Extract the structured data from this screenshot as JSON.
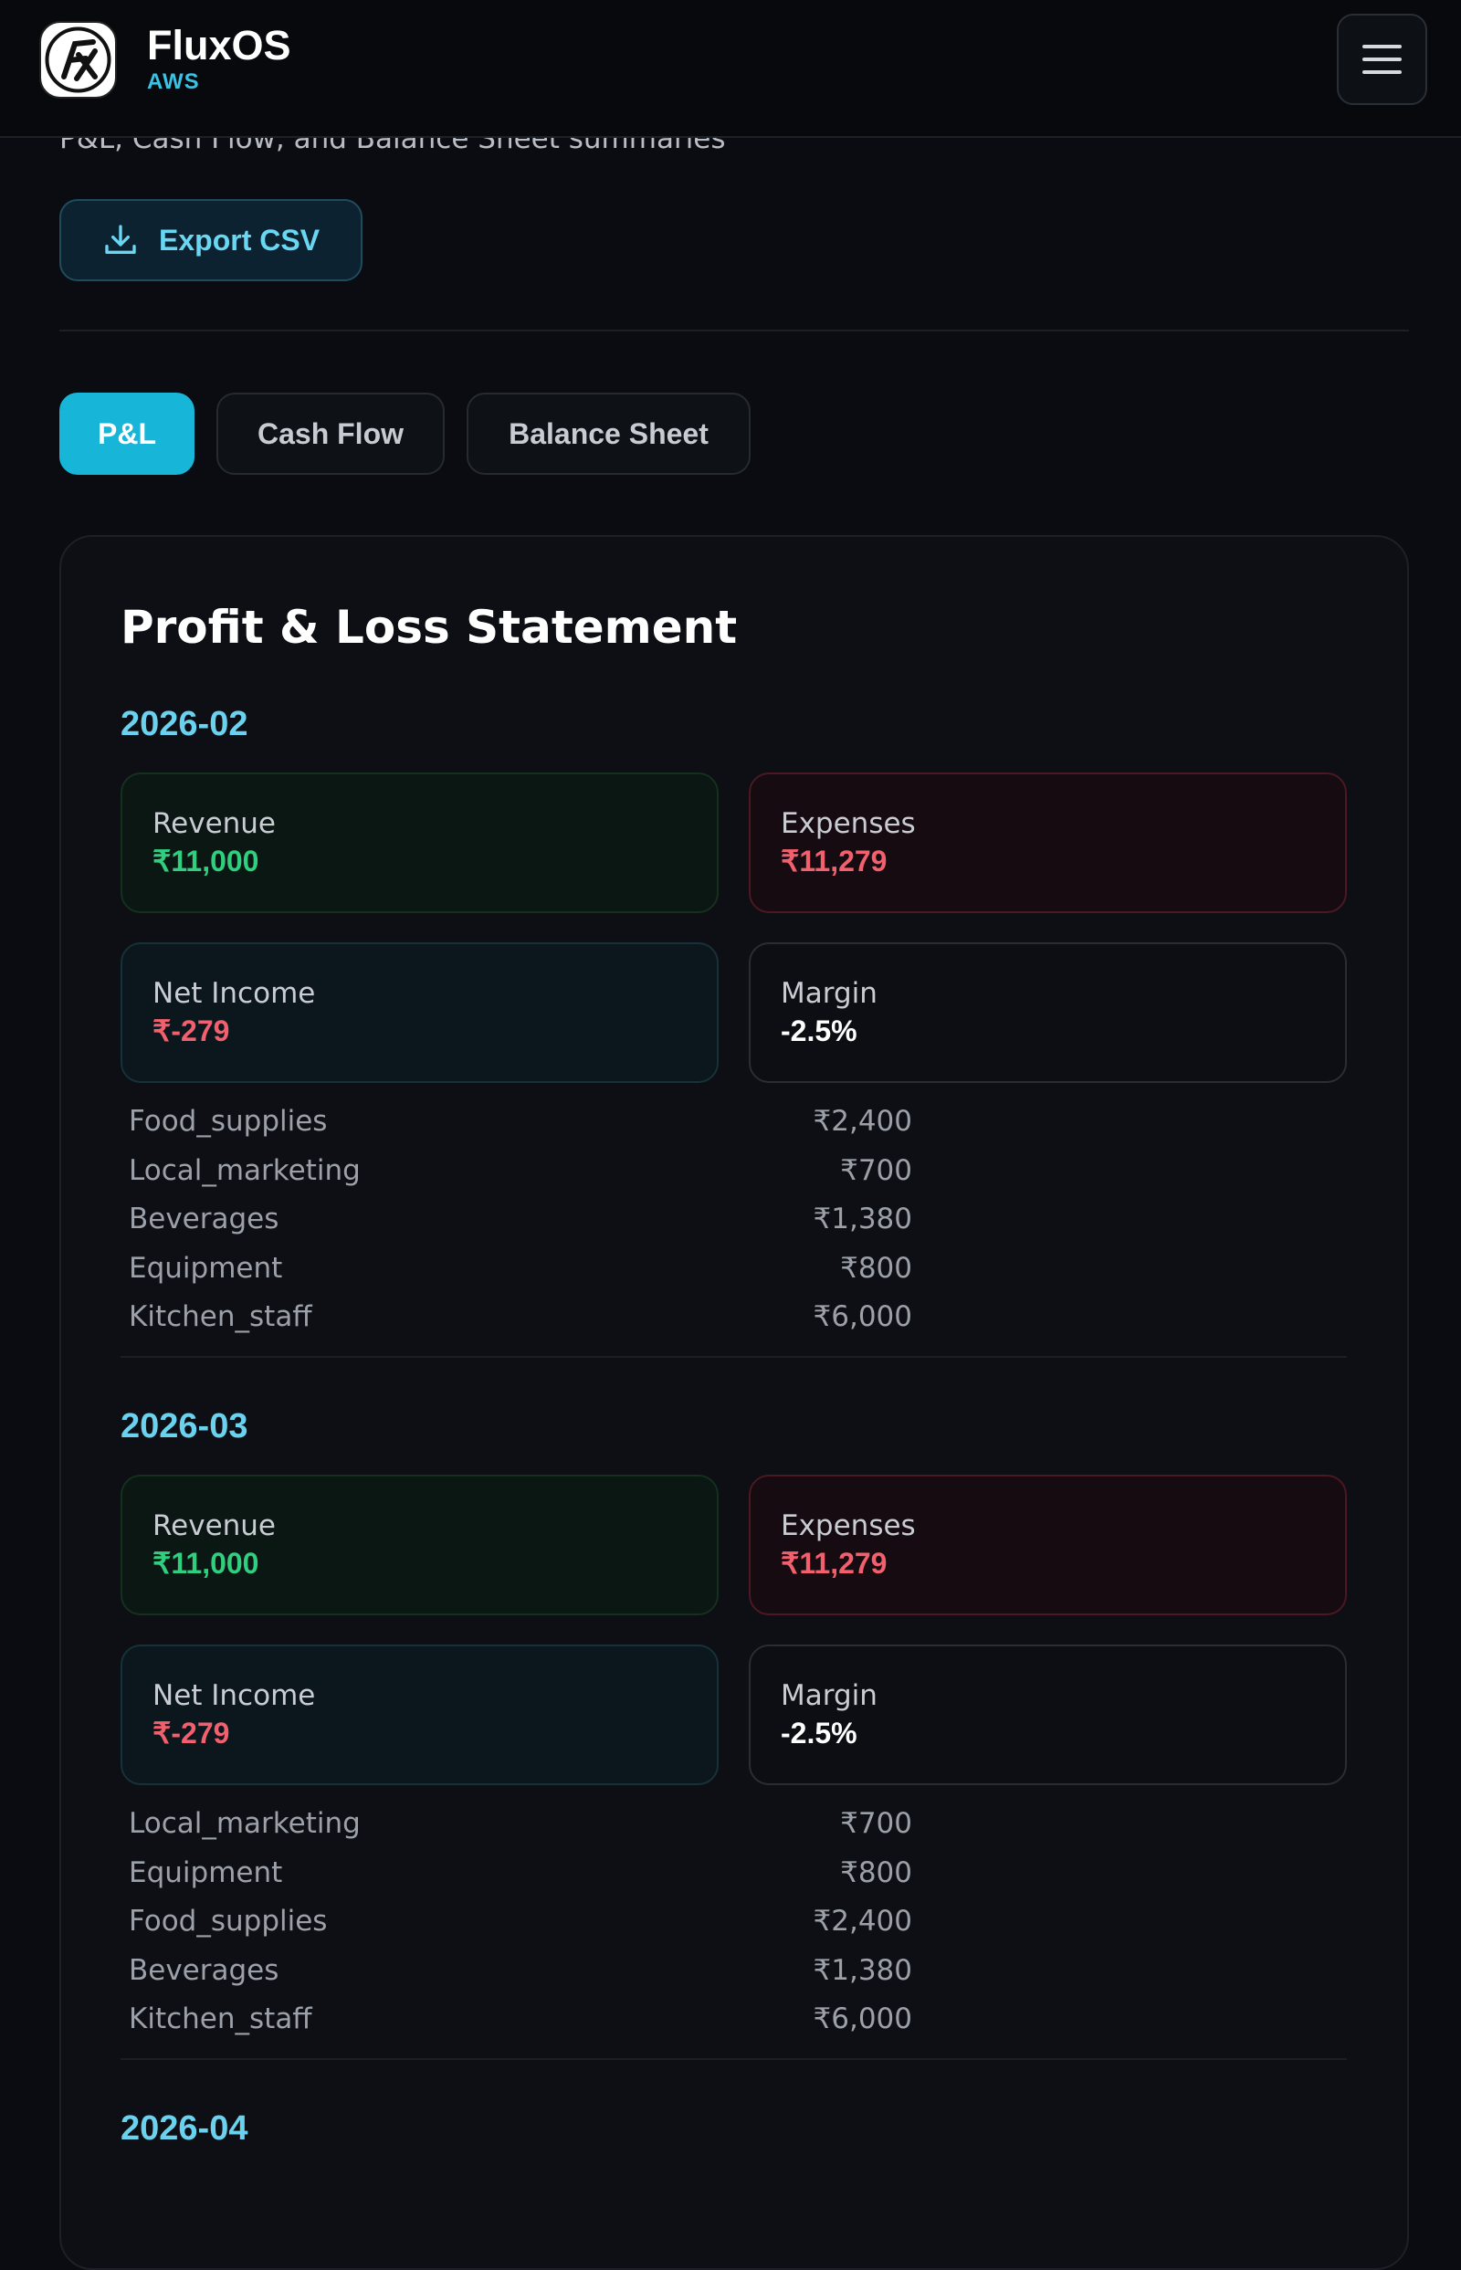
{
  "header": {
    "brand": "FluxOS",
    "env": "AWS"
  },
  "subtitle": "P&L, Cash Flow, and Balance Sheet summaries",
  "export_button": "Export CSV",
  "tabs": [
    "P&L",
    "Cash Flow",
    "Balance Sheet"
  ],
  "statement": {
    "title": "Profit & Loss Statement",
    "periods": [
      {
        "period": "2026-02",
        "metrics": [
          {
            "label": "Revenue",
            "value": "₹11,000"
          },
          {
            "label": "Expenses",
            "value": "₹11,279"
          },
          {
            "label": "Net Income",
            "value": "₹-279"
          },
          {
            "label": "Margin",
            "value": "-2.5%"
          }
        ],
        "items": [
          {
            "name": "Food_supplies",
            "amount": "₹2,400"
          },
          {
            "name": "Local_marketing",
            "amount": "₹700"
          },
          {
            "name": "Beverages",
            "amount": "₹1,380"
          },
          {
            "name": "Equipment",
            "amount": "₹800"
          },
          {
            "name": "Kitchen_staff",
            "amount": "₹6,000"
          }
        ]
      },
      {
        "period": "2026-03",
        "metrics": [
          {
            "label": "Revenue",
            "value": "₹11,000"
          },
          {
            "label": "Expenses",
            "value": "₹11,279"
          },
          {
            "label": "Net Income",
            "value": "₹-279"
          },
          {
            "label": "Margin",
            "value": "-2.5%"
          }
        ],
        "items": [
          {
            "name": "Local_marketing",
            "amount": "₹700"
          },
          {
            "name": "Equipment",
            "amount": "₹800"
          },
          {
            "name": "Food_supplies",
            "amount": "₹2,400"
          },
          {
            "name": "Beverages",
            "amount": "₹1,380"
          },
          {
            "name": "Kitchen_staff",
            "amount": "₹6,000"
          }
        ]
      },
      {
        "period": "2026-04",
        "metrics": [],
        "items": []
      }
    ]
  }
}
